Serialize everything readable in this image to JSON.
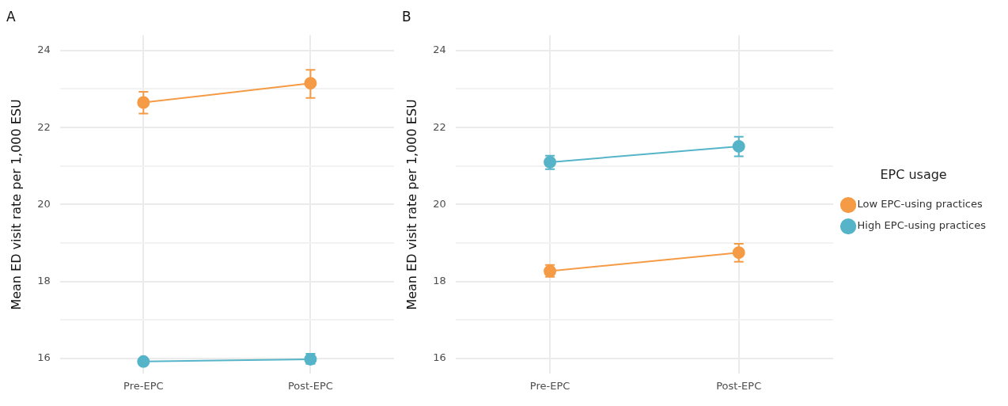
{
  "chart_data": [
    {
      "type": "line",
      "title": "A",
      "ylabel": "Mean ED visit rate per 1,000 ESU",
      "categories": [
        "Pre-EPC",
        "Post-EPC"
      ],
      "series": [
        {
          "color": "#f59a45",
          "values": [
            22.65,
            23.15
          ],
          "errors": [
            [
              22.36,
              22.93
            ],
            [
              22.77,
              23.5
            ]
          ]
        },
        {
          "color": "#56b4c9",
          "values": [
            15.92,
            15.98
          ],
          "errors": [
            null,
            [
              15.86,
              16.12
            ]
          ]
        }
      ],
      "ylim": [
        15.6,
        24.4
      ],
      "yticks": [
        16,
        {
          "value": 17,
          "label": null
        },
        18,
        {
          "value": 19,
          "label": null
        },
        20,
        {
          "value": 21,
          "label": null
        },
        22,
        {
          "value": 23,
          "label": null
        },
        24
      ],
      "grid": true,
      "legend": false,
      "marker": "circle"
    },
    {
      "type": "line",
      "title": "B",
      "ylabel": "Mean ED visit rate per 1,000 ESU",
      "legend_title": "EPC usage",
      "categories": [
        "Pre-EPC",
        "Post-EPC"
      ],
      "series": [
        {
          "name": "Low EPC-using practices",
          "color": "#f59a45",
          "values": [
            18.27,
            18.75
          ],
          "errors": [
            [
              18.12,
              18.43
            ],
            [
              18.51,
              18.98
            ]
          ]
        },
        {
          "name": "High EPC-using practices",
          "color": "#56b4c9",
          "values": [
            21.1,
            21.51
          ],
          "errors": [
            [
              20.92,
              21.27
            ],
            [
              21.25,
              21.76
            ]
          ]
        }
      ],
      "ylim": [
        15.6,
        24.4
      ],
      "yticks": [
        16,
        {
          "value": 17,
          "label": null
        },
        18,
        {
          "value": 19,
          "label": null
        },
        20,
        {
          "value": 21,
          "label": null
        },
        22,
        {
          "value": 23,
          "label": null
        },
        24
      ],
      "grid": true,
      "legend": "right",
      "marker": "circle"
    }
  ]
}
